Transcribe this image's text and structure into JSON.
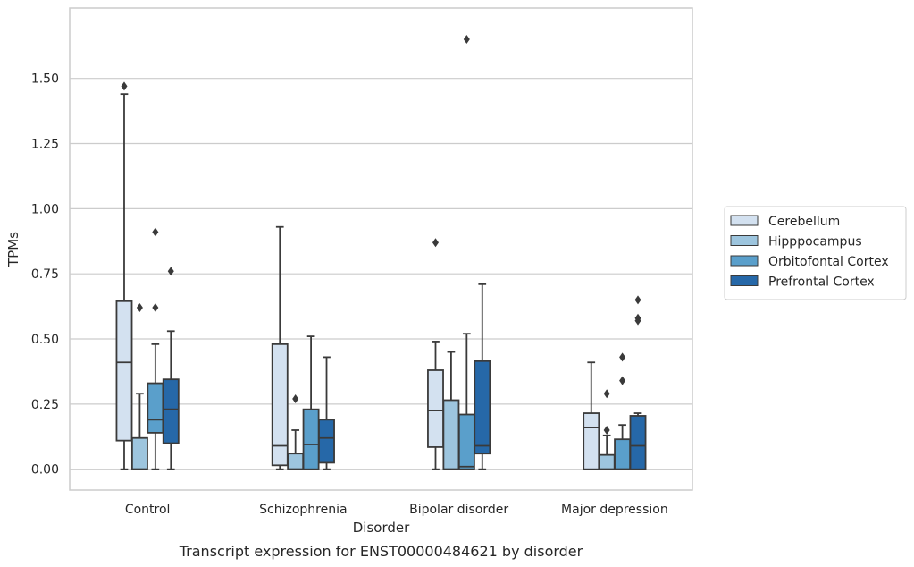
{
  "chart_data": {
    "type": "box",
    "ylabel": "TPMs",
    "xlabel": "Disorder",
    "caption": "Transcript expression for ENST00000484621 by disorder",
    "categories": [
      "Control",
      "Schizophrenia",
      "Bipolar disorder",
      "Major depression"
    ],
    "ylim": [
      -0.08,
      1.77
    ],
    "yticks": [
      0.0,
      0.25,
      0.5,
      0.75,
      1.0,
      1.25,
      1.5
    ],
    "ytick_labels": [
      "0.00",
      "0.25",
      "0.50",
      "0.75",
      "1.00",
      "1.25",
      "1.50"
    ],
    "grid": "horizontal",
    "legend_position": "right",
    "series": [
      {
        "name": "Cerebellum",
        "color": "#d3e1f0",
        "boxes": [
          {
            "min": 0.0,
            "q1": 0.11,
            "median": 0.41,
            "q3": 0.645,
            "max": 1.44,
            "outliers": [
              1.47
            ]
          },
          {
            "min": 0.0,
            "q1": 0.015,
            "median": 0.09,
            "q3": 0.48,
            "max": 0.93,
            "outliers": []
          },
          {
            "min": 0.0,
            "q1": 0.085,
            "median": 0.225,
            "q3": 0.38,
            "max": 0.49,
            "outliers": [
              0.87
            ]
          },
          {
            "min": 0.0,
            "q1": 0.0,
            "median": 0.16,
            "q3": 0.215,
            "max": 0.41,
            "outliers": []
          }
        ]
      },
      {
        "name": "Hipppocampus",
        "color": "#9dc5de",
        "boxes": [
          {
            "min": 0.0,
            "q1": 0.0,
            "median": 0.0,
            "q3": 0.12,
            "max": 0.29,
            "outliers": [
              0.62
            ]
          },
          {
            "min": 0.0,
            "q1": 0.0,
            "median": 0.0,
            "q3": 0.06,
            "max": 0.15,
            "outliers": [
              0.27
            ]
          },
          {
            "min": 0.0,
            "q1": 0.0,
            "median": 0.0,
            "q3": 0.265,
            "max": 0.45,
            "outliers": []
          },
          {
            "min": 0.0,
            "q1": 0.0,
            "median": 0.0,
            "q3": 0.055,
            "max": 0.13,
            "outliers": [
              0.15,
              0.29
            ]
          }
        ]
      },
      {
        "name": "Orbitofontal Cortex",
        "color": "#5a9fcb",
        "boxes": [
          {
            "min": 0.0,
            "q1": 0.14,
            "median": 0.19,
            "q3": 0.33,
            "max": 0.48,
            "outliers": [
              0.62,
              0.91
            ]
          },
          {
            "min": 0.0,
            "q1": 0.0,
            "median": 0.095,
            "q3": 0.23,
            "max": 0.51,
            "outliers": []
          },
          {
            "min": 0.0,
            "q1": 0.0,
            "median": 0.01,
            "q3": 0.21,
            "max": 0.52,
            "outliers": [
              1.65
            ]
          },
          {
            "min": 0.0,
            "q1": 0.0,
            "median": 0.0,
            "q3": 0.115,
            "max": 0.17,
            "outliers": [
              0.34,
              0.43
            ]
          }
        ]
      },
      {
        "name": "Prefrontal Cortex",
        "color": "#2668a8",
        "boxes": [
          {
            "min": 0.0,
            "q1": 0.1,
            "median": 0.23,
            "q3": 0.345,
            "max": 0.53,
            "outliers": [
              0.76
            ]
          },
          {
            "min": 0.0,
            "q1": 0.025,
            "median": 0.12,
            "q3": 0.19,
            "max": 0.43,
            "outliers": []
          },
          {
            "min": 0.0,
            "q1": 0.06,
            "median": 0.09,
            "q3": 0.415,
            "max": 0.71,
            "outliers": []
          },
          {
            "min": 0.0,
            "q1": 0.0,
            "median": 0.09,
            "q3": 0.205,
            "max": 0.215,
            "outliers": [
              0.57,
              0.58,
              0.65
            ]
          }
        ]
      }
    ]
  }
}
